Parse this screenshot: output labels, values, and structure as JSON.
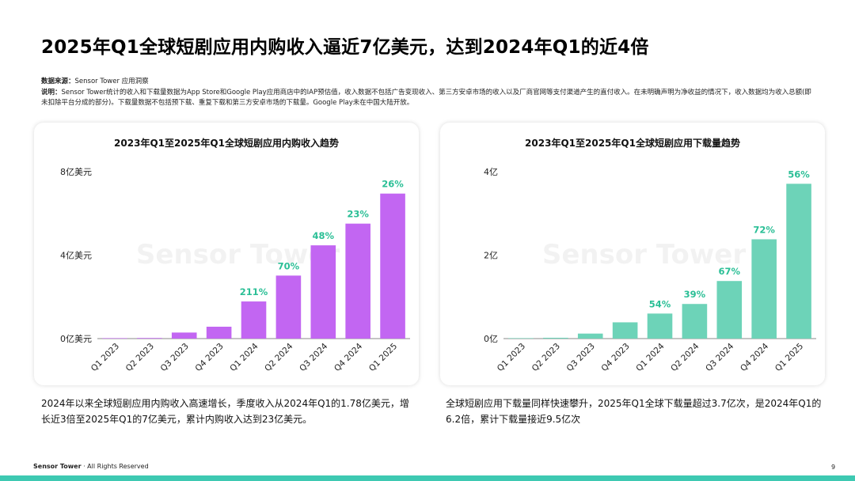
{
  "page": {
    "title": "2025年Q1全球短剧应用内购收入逼近7亿美元，达到2024年Q1的近4倍",
    "source_label": "数据来源：",
    "source_text": "Sensor Tower 应用洞察",
    "note_label": "说明：",
    "note_text": "Sensor Tower统计的收入和下载量数据为App Store和Google Play应用商店中的IAP预估值，收入数据不包括广告变现收入、第三方安卓市场的收入以及厂商官网等支付渠道产生的直付收入。在未明确声明为净收益的情况下，收入数据均为收入总额(即未扣除平台分成的部分)。下载量数据不包括预下载、重复下载和第三方安卓市场的下载量。Google Play未在中国大陆开放。",
    "desc_left": "2024年以来全球短剧应用内购收入高速增长，季度收入从2024年Q1的1.78亿美元，增长近3倍至2025年Q1的7亿美元，累计内购收入达到23亿美元。",
    "desc_right": "全球短剧应用下载量同样快速攀升，2025年Q1全球下载量超过3.7亿次，是2024年Q1的6.2倍，累计下载量接近9.5亿次",
    "footer_brand": "Sensor Tower",
    "footer_rights": "All Rights Reserved",
    "page_number": "9",
    "watermark": "Sensor Tower"
  },
  "chart_data": [
    {
      "type": "bar",
      "title": "2023年Q1至2025年Q1全球短剧应用内购收入趋势",
      "categories": [
        "Q1 2023",
        "Q2 2023",
        "Q3 2023",
        "Q4 2023",
        "Q1 2024",
        "Q2 2024",
        "Q3 2024",
        "Q4 2024",
        "Q1 2025"
      ],
      "values": [
        0.01,
        0.03,
        0.29,
        0.57,
        1.78,
        3.02,
        4.47,
        5.51,
        6.95
      ],
      "data_labels": [
        "",
        "",
        "",
        "",
        "211%",
        "70%",
        "48%",
        "23%",
        "26%"
      ],
      "ytick_labels": [
        "0亿美元",
        "4亿美元",
        "8亿美元"
      ],
      "ytick_values": [
        0,
        4,
        8
      ],
      "ylim": [
        0,
        8
      ],
      "bar_color": "#c266f2",
      "label_color": "#2bbf96",
      "grid": false
    },
    {
      "type": "bar",
      "title": "2023年Q1至2025年Q1全球短剧应用下载量趋势",
      "categories": [
        "Q1 2023",
        "Q2 2023",
        "Q3 2023",
        "Q4 2023",
        "Q1 2024",
        "Q2 2024",
        "Q3 2024",
        "Q4 2024",
        "Q1 2025"
      ],
      "values": [
        0.005,
        0.02,
        0.12,
        0.39,
        0.6,
        0.83,
        1.38,
        2.38,
        3.71
      ],
      "data_labels": [
        "",
        "",
        "",
        "",
        "54%",
        "39%",
        "67%",
        "72%",
        "56%"
      ],
      "ytick_labels": [
        "0亿",
        "2亿",
        "4亿"
      ],
      "ytick_values": [
        0,
        2,
        4
      ],
      "ylim": [
        0,
        4
      ],
      "bar_color": "#6dd3b8",
      "label_color": "#2bbf96",
      "grid": false
    }
  ]
}
